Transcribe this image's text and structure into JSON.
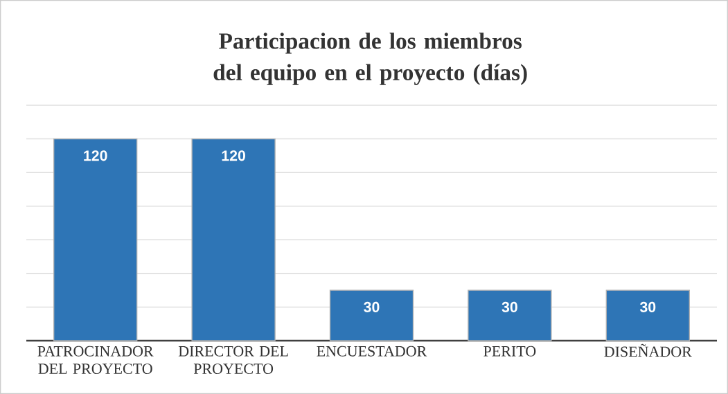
{
  "chart_data": {
    "type": "bar",
    "title": "Participacion de los miembros del equipo en el proyecto (días)",
    "categories": [
      "PATROCINADOR DEL PROYECTO",
      "DIRECTOR DEL PROYECTO",
      "ENCUESTADOR",
      "PERITO",
      "DISEÑADOR"
    ],
    "values": [
      120,
      120,
      30,
      30,
      30
    ],
    "color": "#2e75b6",
    "data_labels": true,
    "ylim": [
      0,
      140
    ],
    "grid": "y",
    "tick_labels": "x"
  }
}
